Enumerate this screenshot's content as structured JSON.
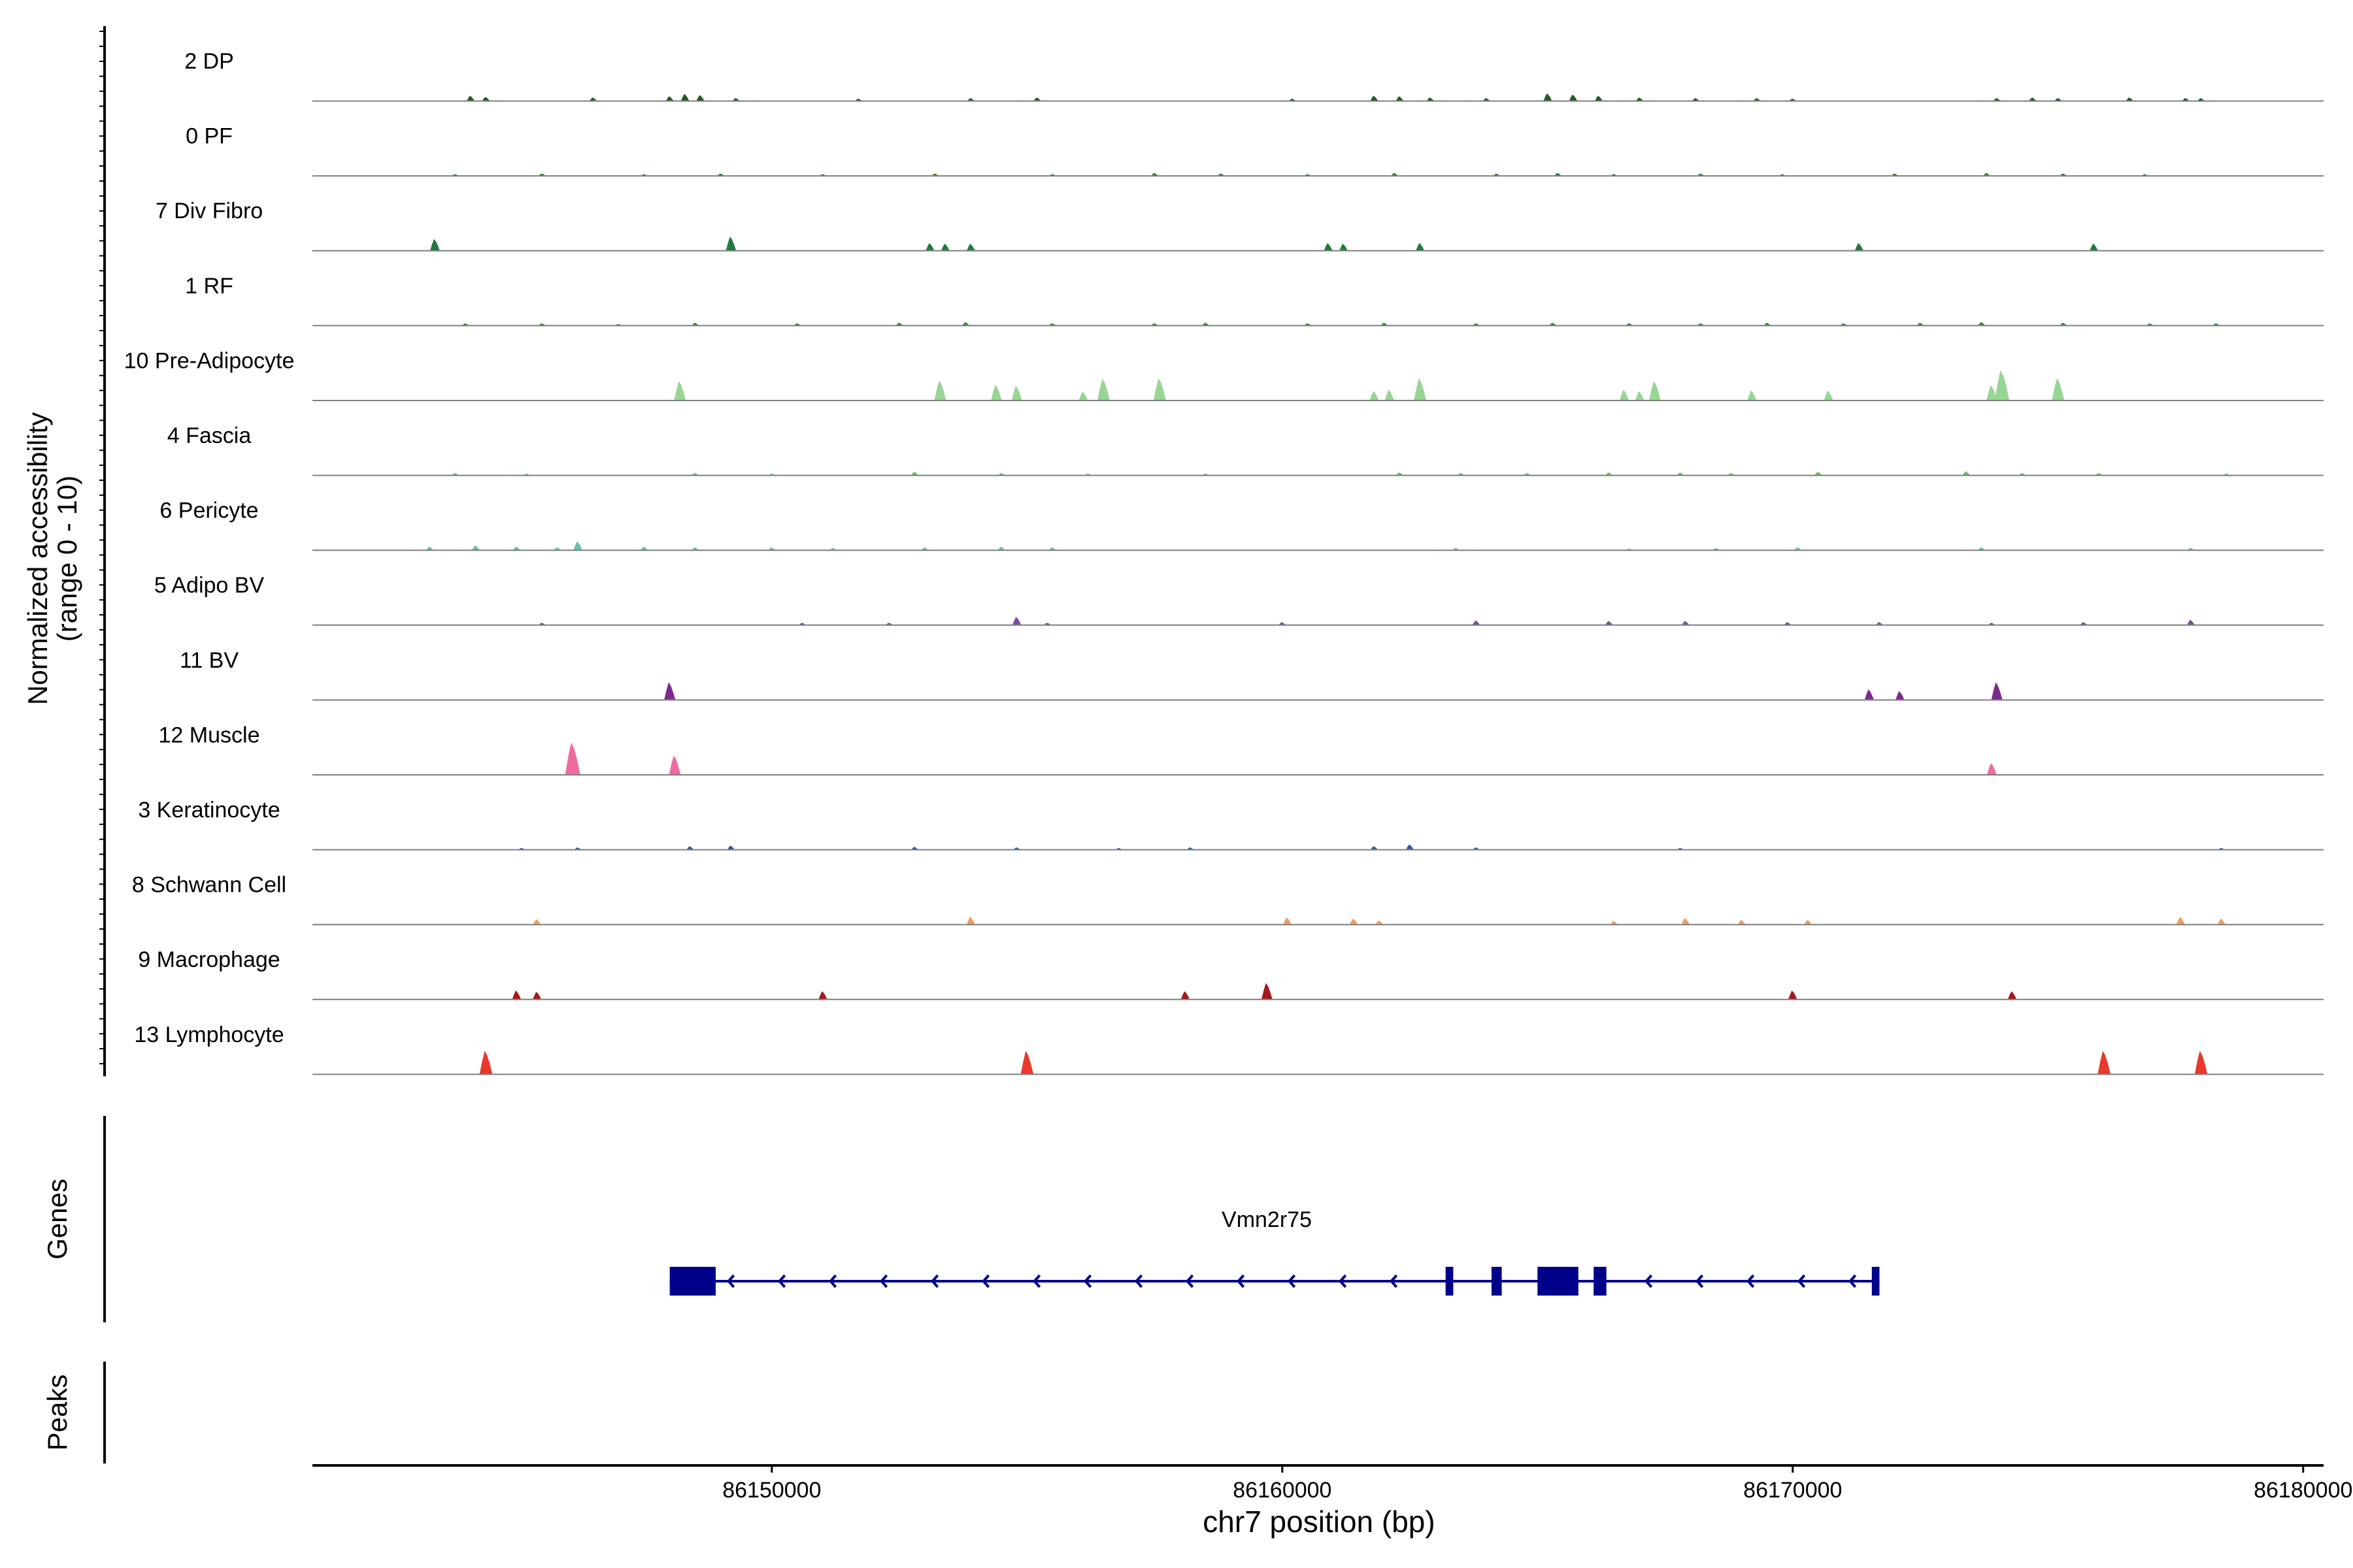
{
  "chart_data": {
    "type": "area",
    "title": "",
    "ylabel_lines": [
      "Normalized accessibility",
      "(range 0 - 10)"
    ],
    "xlabel": "chr7 position (bp)",
    "xlim": [
      86141000,
      86180400
    ],
    "ylim_per_track": [
      0,
      10
    ],
    "x_ticks": [
      86150000,
      86160000,
      86170000,
      86180000
    ],
    "x_tick_labels": [
      "86150000",
      "86160000",
      "86170000",
      "86180000"
    ],
    "grid": false,
    "legend": "none",
    "tracks": [
      {
        "label": "2 DP",
        "color": "#1b5e20",
        "peaks": [
          [
            86144100,
            0.9
          ],
          [
            86144400,
            0.7
          ],
          [
            86146500,
            0.6
          ],
          [
            86148000,
            0.8
          ],
          [
            86148300,
            1.2
          ],
          [
            86148600,
            1.0
          ],
          [
            86149300,
            0.5
          ],
          [
            86151700,
            0.4
          ],
          [
            86153900,
            0.5
          ],
          [
            86155200,
            0.6
          ],
          [
            86160200,
            0.4
          ],
          [
            86161800,
            0.9
          ],
          [
            86162300,
            0.8
          ],
          [
            86162900,
            0.6
          ],
          [
            86164000,
            0.5
          ],
          [
            86165200,
            1.3
          ],
          [
            86165700,
            1.1
          ],
          [
            86166200,
            0.9
          ],
          [
            86167000,
            0.6
          ],
          [
            86168100,
            0.5
          ],
          [
            86169300,
            0.5
          ],
          [
            86170000,
            0.4
          ],
          [
            86174000,
            0.5
          ],
          [
            86174700,
            0.6
          ],
          [
            86175200,
            0.5
          ],
          [
            86176600,
            0.6
          ],
          [
            86177700,
            0.5
          ],
          [
            86178000,
            0.5
          ]
        ]
      },
      {
        "label": "0 PF",
        "color": "#2e7d32",
        "peaks": [
          [
            86143800,
            0.3
          ],
          [
            86145500,
            0.4
          ],
          [
            86147500,
            0.3
          ],
          [
            86149000,
            0.4
          ],
          [
            86151000,
            0.3
          ],
          [
            86153200,
            0.4
          ],
          [
            86155500,
            0.3
          ],
          [
            86157500,
            0.5
          ],
          [
            86158800,
            0.4
          ],
          [
            86160500,
            0.3
          ],
          [
            86162200,
            0.5
          ],
          [
            86164200,
            0.4
          ],
          [
            86165400,
            0.5
          ],
          [
            86166500,
            0.3
          ],
          [
            86168200,
            0.4
          ],
          [
            86169800,
            0.3
          ],
          [
            86172000,
            0.4
          ],
          [
            86173800,
            0.5
          ],
          [
            86175300,
            0.4
          ],
          [
            86176900,
            0.3
          ]
        ]
      },
      {
        "label": "7 Div Fibro",
        "color": "#1e7b3c",
        "peaks": [
          [
            86143400,
            2.0
          ],
          [
            86149200,
            2.4
          ],
          [
            86153100,
            1.3
          ],
          [
            86153400,
            1.2
          ],
          [
            86153900,
            1.2
          ],
          [
            86160900,
            1.3
          ],
          [
            86161200,
            1.2
          ],
          [
            86162700,
            1.3
          ],
          [
            86171300,
            1.3
          ],
          [
            86175900,
            1.2
          ]
        ]
      },
      {
        "label": "1 RF",
        "color": "#388e3c",
        "peaks": [
          [
            86144000,
            0.4
          ],
          [
            86145500,
            0.4
          ],
          [
            86147000,
            0.3
          ],
          [
            86148500,
            0.5
          ],
          [
            86150500,
            0.4
          ],
          [
            86152500,
            0.5
          ],
          [
            86153800,
            0.6
          ],
          [
            86155500,
            0.4
          ],
          [
            86157500,
            0.4
          ],
          [
            86158500,
            0.5
          ],
          [
            86160500,
            0.4
          ],
          [
            86162000,
            0.5
          ],
          [
            86163800,
            0.4
          ],
          [
            86165300,
            0.5
          ],
          [
            86166800,
            0.4
          ],
          [
            86168200,
            0.4
          ],
          [
            86169500,
            0.5
          ],
          [
            86171000,
            0.4
          ],
          [
            86172500,
            0.5
          ],
          [
            86173700,
            0.6
          ],
          [
            86175300,
            0.5
          ],
          [
            86177000,
            0.4
          ],
          [
            86178300,
            0.4
          ]
        ]
      },
      {
        "label": "10 Pre-Adipocyte",
        "color": "#98d594",
        "peaks": [
          [
            86148200,
            3.3
          ],
          [
            86153300,
            3.4
          ],
          [
            86154400,
            2.7
          ],
          [
            86154800,
            2.5
          ],
          [
            86156100,
            1.5
          ],
          [
            86156500,
            3.7
          ],
          [
            86157600,
            3.8
          ],
          [
            86161800,
            1.6
          ],
          [
            86162100,
            1.8
          ],
          [
            86162700,
            3.8
          ],
          [
            86166700,
            1.8
          ],
          [
            86167000,
            1.6
          ],
          [
            86167300,
            3.3
          ],
          [
            86169200,
            1.7
          ],
          [
            86170700,
            1.7
          ],
          [
            86173900,
            2.6
          ],
          [
            86174100,
            5.2
          ],
          [
            86175200,
            3.8
          ]
        ]
      },
      {
        "label": "4 Fascia",
        "color": "#6abf6a",
        "peaks": [
          [
            86143800,
            0.4
          ],
          [
            86145200,
            0.3
          ],
          [
            86148500,
            0.4
          ],
          [
            86150000,
            0.3
          ],
          [
            86152800,
            0.6
          ],
          [
            86154500,
            0.4
          ],
          [
            86156200,
            0.3
          ],
          [
            86158500,
            0.3
          ],
          [
            86162300,
            0.5
          ],
          [
            86163500,
            0.4
          ],
          [
            86164800,
            0.4
          ],
          [
            86166400,
            0.5
          ],
          [
            86167800,
            0.5
          ],
          [
            86168800,
            0.4
          ],
          [
            86170500,
            0.6
          ],
          [
            86173400,
            0.7
          ],
          [
            86174500,
            0.4
          ],
          [
            86176000,
            0.4
          ],
          [
            86178500,
            0.3
          ]
        ]
      },
      {
        "label": "6 Pericyte",
        "color": "#66c2a4",
        "peaks": [
          [
            86143300,
            0.6
          ],
          [
            86144200,
            0.8
          ],
          [
            86145000,
            0.6
          ],
          [
            86145800,
            0.5
          ],
          [
            86146200,
            1.5
          ],
          [
            86147500,
            0.6
          ],
          [
            86148500,
            0.5
          ],
          [
            86150000,
            0.5
          ],
          [
            86151200,
            0.4
          ],
          [
            86153000,
            0.5
          ],
          [
            86154500,
            0.6
          ],
          [
            86155500,
            0.5
          ],
          [
            86163400,
            0.4
          ],
          [
            86166800,
            0.3
          ],
          [
            86168500,
            0.4
          ],
          [
            86170100,
            0.5
          ],
          [
            86173700,
            0.5
          ],
          [
            86177800,
            0.4
          ]
        ]
      },
      {
        "label": "5 Adipo BV",
        "color": "#7b4ba3",
        "peaks": [
          [
            86145500,
            0.4
          ],
          [
            86150600,
            0.4
          ],
          [
            86152300,
            0.4
          ],
          [
            86154800,
            1.4
          ],
          [
            86155400,
            0.4
          ],
          [
            86160000,
            0.5
          ],
          [
            86163800,
            0.8
          ],
          [
            86166400,
            0.7
          ],
          [
            86167900,
            0.7
          ],
          [
            86169900,
            0.5
          ],
          [
            86171700,
            0.5
          ],
          [
            86173900,
            0.4
          ],
          [
            86175700,
            0.5
          ],
          [
            86177800,
            0.9
          ]
        ]
      },
      {
        "label": "11 BV",
        "color": "#7a2c8c",
        "peaks": [
          [
            86148000,
            3.0
          ],
          [
            86171500,
            1.8
          ],
          [
            86172100,
            1.5
          ],
          [
            86174000,
            3.0
          ]
        ]
      },
      {
        "label": "12 Muscle",
        "color": "#f06aa0",
        "peaks": [
          [
            86146100,
            5.5
          ],
          [
            86148100,
            3.3
          ],
          [
            86173900,
            2.0
          ]
        ]
      },
      {
        "label": "3 Keratinocyte",
        "color": "#2b5c9e",
        "peaks": [
          [
            86145100,
            0.3
          ],
          [
            86146200,
            0.4
          ],
          [
            86148400,
            0.6
          ],
          [
            86149200,
            0.7
          ],
          [
            86152800,
            0.5
          ],
          [
            86154800,
            0.4
          ],
          [
            86156800,
            0.3
          ],
          [
            86158200,
            0.4
          ],
          [
            86161800,
            0.6
          ],
          [
            86162500,
            0.9
          ],
          [
            86163800,
            0.4
          ],
          [
            86167800,
            0.3
          ],
          [
            86178400,
            0.3
          ]
        ]
      },
      {
        "label": "8 Schwann Cell",
        "color": "#f29d5c",
        "peaks": [
          [
            86145400,
            0.9
          ],
          [
            86153900,
            1.3
          ],
          [
            86160100,
            1.2
          ],
          [
            86161400,
            1.0
          ],
          [
            86161900,
            0.7
          ],
          [
            86166500,
            0.6
          ],
          [
            86167900,
            1.1
          ],
          [
            86169000,
            0.8
          ],
          [
            86170300,
            0.8
          ],
          [
            86177600,
            1.3
          ],
          [
            86178400,
            1.0
          ]
        ]
      },
      {
        "label": "9 Macrophage",
        "color": "#a6171c",
        "peaks": [
          [
            86145000,
            1.5
          ],
          [
            86145400,
            1.3
          ],
          [
            86151000,
            1.4
          ],
          [
            86158100,
            1.4
          ],
          [
            86159700,
            2.8
          ],
          [
            86170000,
            1.5
          ],
          [
            86174300,
            1.4
          ]
        ]
      },
      {
        "label": "13 Lymphocyte",
        "color": "#e8392b",
        "peaks": [
          [
            86144400,
            4.0
          ],
          [
            86155000,
            4.0
          ],
          [
            86176100,
            4.0
          ],
          [
            86178000,
            4.0
          ]
        ]
      }
    ],
    "genes": {
      "axis_label": "Genes",
      "name": "Vmn2r75",
      "color": "#00008b",
      "strand": "-",
      "start": 86148000,
      "end": 86171700,
      "exons": [
        [
          86148000,
          86148900
        ],
        [
          86163200,
          86163350
        ],
        [
          86164100,
          86164300
        ],
        [
          86165000,
          86165800
        ],
        [
          86166100,
          86166350
        ],
        [
          86171550,
          86171700
        ]
      ]
    },
    "peaks_track": {
      "axis_label": "Peaks",
      "regions": []
    }
  }
}
